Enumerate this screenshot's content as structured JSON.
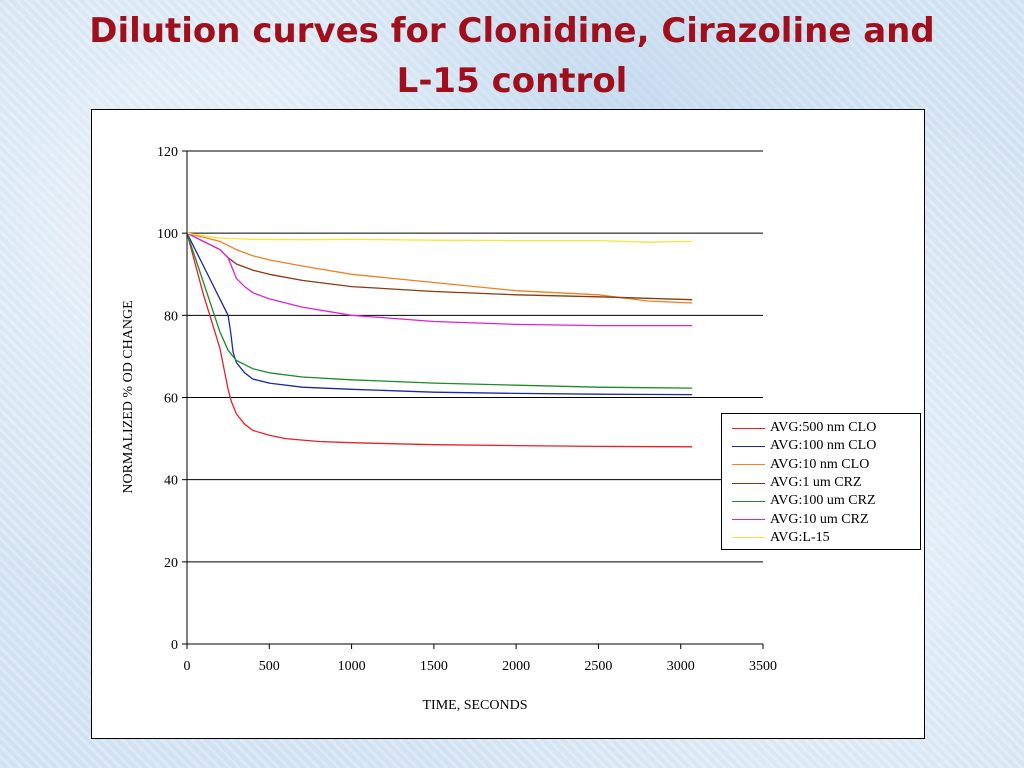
{
  "title": {
    "line1": "Dilution curves for Clonidine, Cirazoline and",
    "line2": "L-15 control"
  },
  "chart_data": {
    "type": "line",
    "xlabel": "TIME, SECONDS",
    "ylabel": "NORMALIZED % OD CHANGE",
    "xlim": [
      0,
      3500
    ],
    "ylim": [
      0,
      120
    ],
    "xticks": [
      0,
      500,
      1000,
      1500,
      2000,
      2500,
      3000,
      3500
    ],
    "yticks": [
      0,
      20,
      40,
      60,
      80,
      100,
      120
    ],
    "grid": "horizontal major gridlines",
    "legend_position": "right",
    "series": [
      {
        "name": "AVG:500 nm CLO",
        "color": "#e8202a",
        "x": [
          0,
          100,
          200,
          250,
          270,
          300,
          350,
          400,
          500,
          600,
          800,
          1000,
          1500,
          2000,
          2500,
          3070
        ],
        "y": [
          100,
          85,
          72,
          62,
          59,
          56,
          53.5,
          52,
          50.8,
          50,
          49.3,
          49,
          48.5,
          48.3,
          48.1,
          48
        ]
      },
      {
        "name": "AVG:100 nm CLO",
        "color": "#1a2aa0",
        "x": [
          0,
          100,
          200,
          250,
          265,
          280,
          300,
          350,
          400,
          500,
          700,
          1000,
          1500,
          2000,
          2500,
          3070
        ],
        "y": [
          100,
          92,
          84,
          80,
          76,
          71,
          68.5,
          66,
          64.5,
          63.5,
          62.5,
          62,
          61.3,
          61,
          60.8,
          60.7
        ]
      },
      {
        "name": "AVG:10 nm CLO",
        "color": "#f08020",
        "x": [
          0,
          100,
          200,
          300,
          400,
          500,
          700,
          1000,
          1500,
          2000,
          2500,
          2800,
          3070
        ],
        "y": [
          100,
          99,
          98,
          96,
          94.5,
          93.5,
          92,
          90,
          88,
          86,
          85,
          83.5,
          83
        ]
      },
      {
        "name": "AVG:1 um CRZ",
        "color": "#8a3a10",
        "x": [
          0,
          100,
          200,
          250,
          300,
          400,
          500,
          700,
          1000,
          1500,
          2000,
          2500,
          3070
        ],
        "y": [
          100,
          98,
          96,
          94,
          92.5,
          91,
          90,
          88.5,
          87,
          85.8,
          85,
          84.5,
          83.8
        ]
      },
      {
        "name": "AVG:100 um CRZ",
        "color": "#1e8a28",
        "x": [
          0,
          100,
          200,
          250,
          300,
          350,
          400,
          500,
          700,
          1000,
          1500,
          2000,
          2500,
          3070
        ],
        "y": [
          100,
          88,
          76,
          71.5,
          69,
          68,
          67,
          66,
          65,
          64.3,
          63.5,
          63,
          62.5,
          62.3
        ]
      },
      {
        "name": "AVG:10 um CRZ",
        "color": "#e020d8",
        "x": [
          0,
          100,
          200,
          250,
          300,
          350,
          400,
          500,
          700,
          1000,
          1500,
          2000,
          2500,
          3070
        ],
        "y": [
          100,
          98,
          96,
          94,
          89,
          87,
          85.5,
          84,
          82,
          80,
          78.5,
          77.8,
          77.5,
          77.5
        ]
      },
      {
        "name": "AVG:L-15",
        "color": "#f5e63a",
        "x": [
          0,
          200,
          400,
          700,
          1000,
          1500,
          2000,
          2500,
          2800,
          3070
        ],
        "y": [
          100,
          98.8,
          98.5,
          98.4,
          98.5,
          98.3,
          98.2,
          98.2,
          97.8,
          98
        ]
      }
    ]
  }
}
